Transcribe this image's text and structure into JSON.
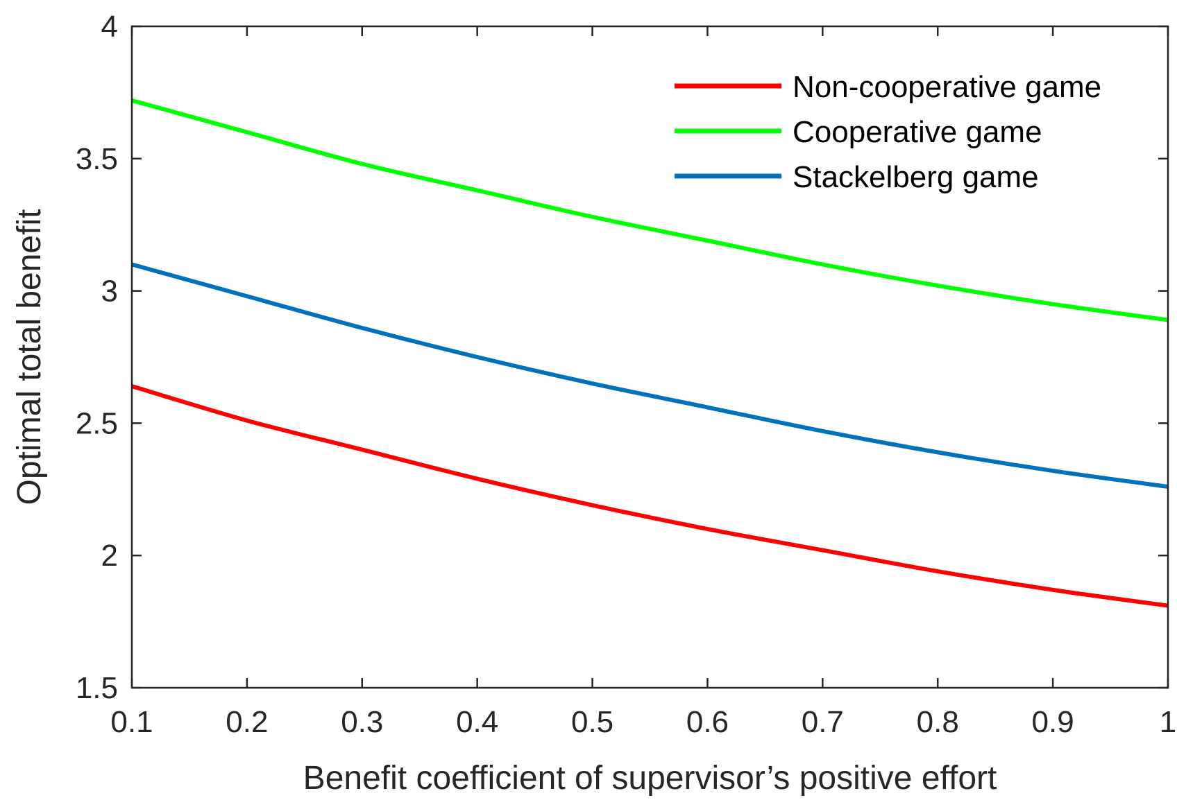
{
  "chart_data": {
    "type": "line",
    "title": "",
    "xlabel": "Benefit coefficient of supervisor’s positive effort",
    "ylabel": "Optimal total benefit",
    "xlim": [
      0.1,
      1
    ],
    "ylim": [
      1.5,
      4
    ],
    "xticks": [
      0.1,
      0.2,
      0.3,
      0.4,
      0.5,
      0.6,
      0.7,
      0.8,
      0.9,
      1
    ],
    "xtick_labels": [
      "0.1",
      "0.2",
      "0.3",
      "0.4",
      "0.5",
      "0.6",
      "0.7",
      "0.8",
      "0.9",
      "1"
    ],
    "yticks": [
      1.5,
      2,
      2.5,
      3,
      3.5,
      4
    ],
    "ytick_labels": [
      "1.5",
      "2",
      "2.5",
      "3",
      "3.5",
      "4"
    ],
    "grid": false,
    "legend_position": "top-right",
    "x": [
      0.1,
      0.2,
      0.3,
      0.4,
      0.5,
      0.6,
      0.7,
      0.8,
      0.9,
      1.0
    ],
    "series": [
      {
        "name": "Non-cooperative game",
        "color": "#ff0000",
        "values": [
          2.64,
          2.51,
          2.4,
          2.29,
          2.19,
          2.1,
          2.02,
          1.94,
          1.87,
          1.81
        ]
      },
      {
        "name": "Cooperative game",
        "color": "#00ff00",
        "values": [
          3.72,
          3.6,
          3.48,
          3.38,
          3.28,
          3.19,
          3.1,
          3.02,
          2.95,
          2.89
        ]
      },
      {
        "name": "Stackelberg game",
        "color": "#0072bd",
        "values": [
          3.1,
          2.98,
          2.86,
          2.75,
          2.65,
          2.56,
          2.47,
          2.39,
          2.32,
          2.26
        ]
      }
    ]
  }
}
